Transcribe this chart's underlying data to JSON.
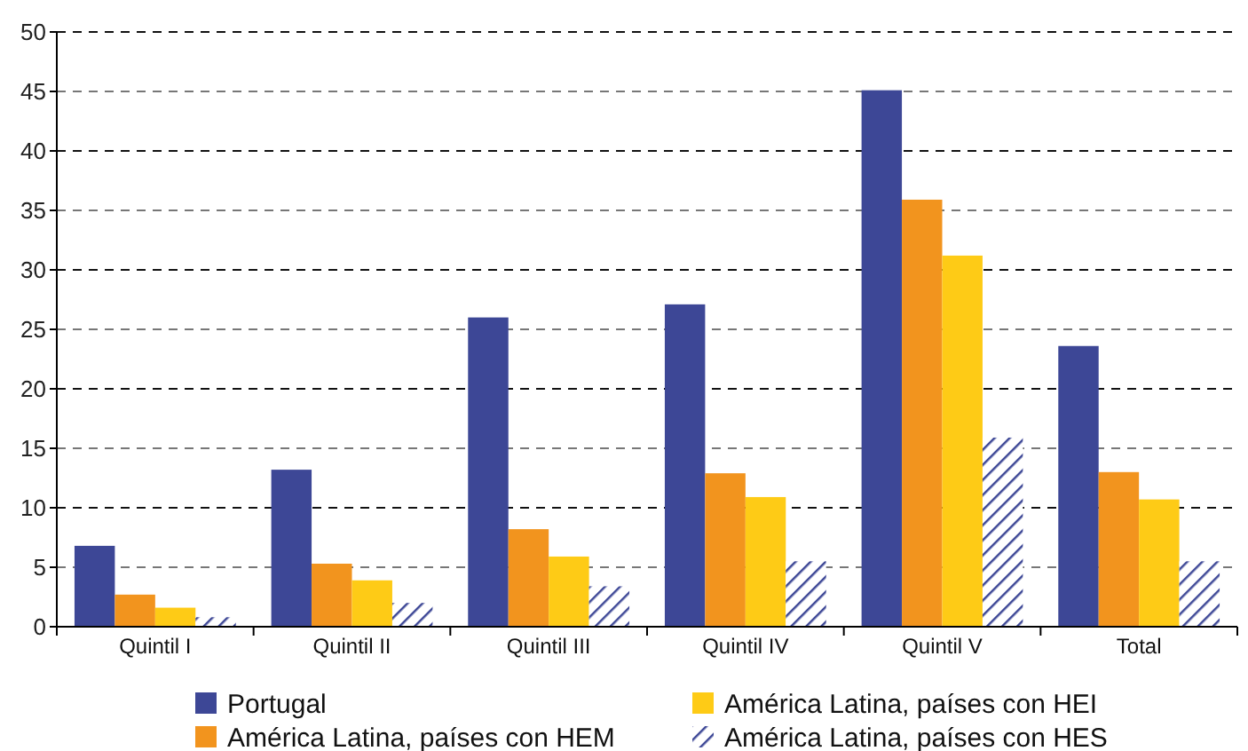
{
  "chart_data": {
    "type": "bar",
    "categories": [
      "Quintil I",
      "Quintil II",
      "Quintil III",
      "Quintil IV",
      "Quintil V",
      "Total"
    ],
    "series": [
      {
        "name": "Portugal",
        "color": "#3d4796",
        "values": [
          6.8,
          13.2,
          26.0,
          27.1,
          45.1,
          23.6
        ]
      },
      {
        "name": "América Latina, países con HEM",
        "color": "#f2941e",
        "values": [
          2.7,
          5.3,
          8.2,
          12.9,
          35.9,
          13.0
        ]
      },
      {
        "name": "América Latina, países con HEI",
        "color": "#fecb16",
        "values": [
          1.6,
          3.9,
          5.9,
          10.9,
          31.2,
          10.7
        ]
      },
      {
        "name": "América Latina, países con HES",
        "color": "#3d4796",
        "values": [
          0.8,
          2.0,
          3.4,
          5.5,
          15.9,
          5.5
        ]
      }
    ],
    "ylim": [
      0,
      50
    ],
    "yticks": [
      0,
      5,
      10,
      15,
      20,
      25,
      30,
      35,
      40,
      45,
      50
    ],
    "grid": "y",
    "legend": "bottom"
  }
}
